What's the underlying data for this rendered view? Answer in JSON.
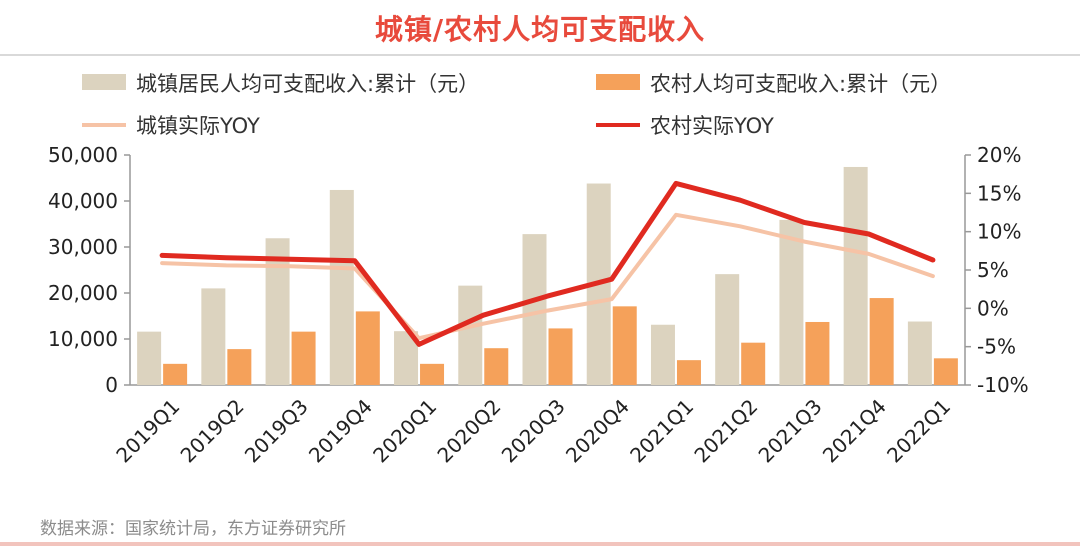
{
  "header": {
    "title": "城镇/农村人均可支配收入"
  },
  "source_note": "数据来源：国家统计局，东方证券研究所",
  "colors": {
    "urban_bar": "#dcd3bf",
    "rural_bar": "#f5a15a",
    "urban_line": "#f6c3a6",
    "rural_line": "#e02a20"
  },
  "chart_data": {
    "type": "bar",
    "title": "城镇/农村人均可支配收入",
    "categories": [
      "2019Q1",
      "2019Q2",
      "2019Q3",
      "2019Q4",
      "2020Q1",
      "2020Q2",
      "2020Q3",
      "2020Q4",
      "2021Q1",
      "2021Q2",
      "2021Q3",
      "2021Q4",
      "2022Q1"
    ],
    "series": [
      {
        "name": "城镇居民人均可支配收入:累计（元）",
        "kind": "bar",
        "axis": "left",
        "values": [
          11600,
          21000,
          31900,
          42400,
          11700,
          21600,
          32800,
          43800,
          13100,
          24100,
          35900,
          47400,
          13800
        ]
      },
      {
        "name": "农村人均可支配收入:累计（元）",
        "kind": "bar",
        "axis": "left",
        "values": [
          4600,
          7800,
          11600,
          16000,
          4600,
          8000,
          12300,
          17100,
          5400,
          9200,
          13700,
          18900,
          5800
        ]
      },
      {
        "name": "城镇实际YOY",
        "kind": "line",
        "axis": "right",
        "values": [
          5.9,
          5.6,
          5.5,
          5.2,
          -3.9,
          -2.0,
          -0.3,
          1.2,
          12.2,
          10.7,
          8.7,
          7.1,
          4.2
        ]
      },
      {
        "name": "农村实际YOY",
        "kind": "line",
        "axis": "right",
        "values": [
          6.9,
          6.6,
          6.4,
          6.2,
          -4.7,
          -0.9,
          1.6,
          3.8,
          16.3,
          14.1,
          11.2,
          9.7,
          6.3
        ]
      }
    ],
    "left_axis": {
      "min": 0,
      "max": 50000,
      "ticks": [
        "0",
        "10,000",
        "20,000",
        "30,000",
        "40,000",
        "50,000"
      ],
      "tick_values": [
        0,
        10000,
        20000,
        30000,
        40000,
        50000
      ]
    },
    "right_axis": {
      "min": -10,
      "max": 20,
      "ticks": [
        "-10%",
        "-5%",
        "0%",
        "5%",
        "10%",
        "15%",
        "20%"
      ],
      "tick_values": [
        -10,
        -5,
        0,
        5,
        10,
        15,
        20
      ]
    },
    "legend_placement": "top",
    "grid": false
  }
}
